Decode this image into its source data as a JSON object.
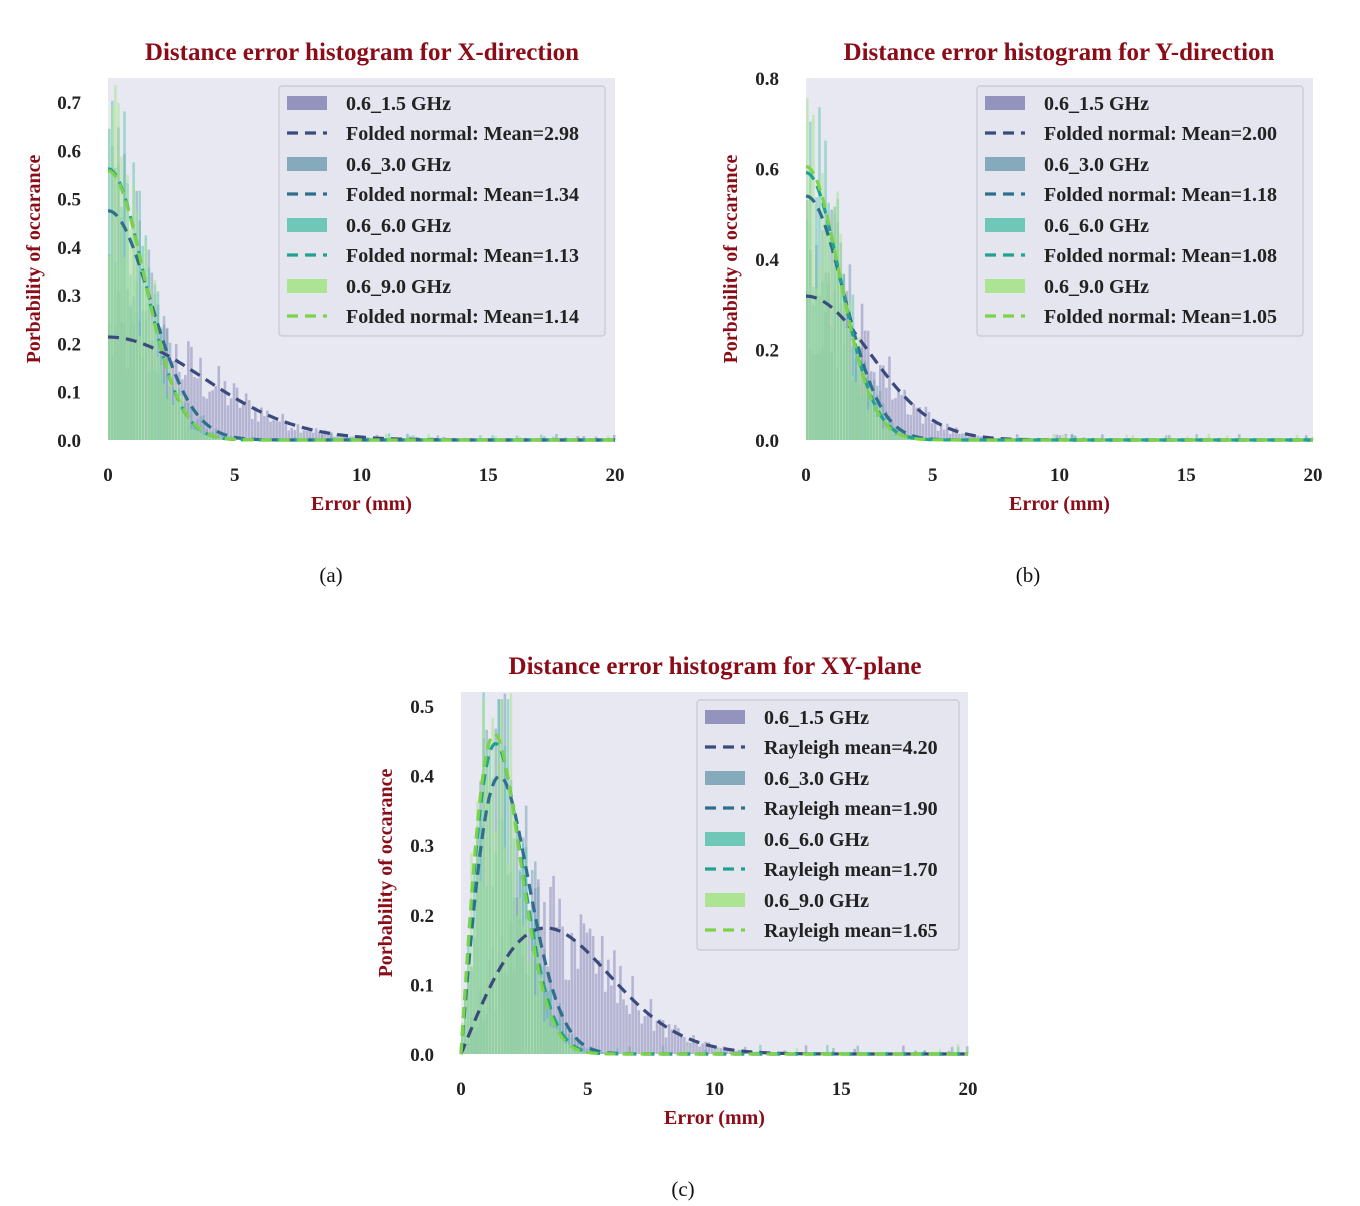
{
  "colors": {
    "plot_bg": "#e8e8f3",
    "legend_bg": "#e5e5f0",
    "legend_border": "#c8c8d4",
    "title": "#8b0c17",
    "s1": "#3b4a7c",
    "s2": "#2f6e8c",
    "s3": "#1fa38f",
    "s4": "#7dd348",
    "hist1": "#8a8ab8",
    "hist2": "#7aa3b5",
    "hist3": "#62c4b0",
    "hist4": "#a6e38a"
  },
  "chart_data": [
    {
      "id": "a",
      "type": "histogram+line",
      "title": "Distance error histogram for X-direction",
      "xlabel": "Error (mm)",
      "ylabel": "Porbability of occarance",
      "xlim": [
        0,
        20
      ],
      "ylim": [
        0,
        0.75
      ],
      "xticks": [
        "0",
        "5",
        "10",
        "15",
        "20"
      ],
      "xtick_values": [
        0,
        5,
        10,
        15,
        20
      ],
      "yticks": [
        "0.0",
        "0.1",
        "0.2",
        "0.3",
        "0.4",
        "0.5",
        "0.6",
        "0.7"
      ],
      "ytick_values": [
        0,
        0.1,
        0.2,
        0.3,
        0.4,
        0.5,
        0.6,
        0.7
      ],
      "legend_position": "top-right",
      "distribution": "foldnorm",
      "series": [
        {
          "hist_label": "0.6_1.5 GHz",
          "fit_label": "Folded normal: Mean=2.98",
          "sigma": 3.74,
          "color_key": "s1",
          "hist_key": "hist1"
        },
        {
          "hist_label": "0.6_3.0 GHz",
          "fit_label": "Folded normal: Mean=1.34",
          "sigma": 1.68,
          "color_key": "s2",
          "hist_key": "hist2"
        },
        {
          "hist_label": "0.6_6.0 GHz",
          "fit_label": "Folded normal: Mean=1.13",
          "sigma": 1.42,
          "color_key": "s3",
          "hist_key": "hist3"
        },
        {
          "hist_label": "0.6_9.0 GHz",
          "fit_label": "Folded normal: Mean=1.14",
          "sigma": 1.43,
          "color_key": "s4",
          "hist_key": "hist4"
        }
      ],
      "caption": "(a)"
    },
    {
      "id": "b",
      "type": "histogram+line",
      "title": "Distance error histogram for Y-direction",
      "xlabel": "Error (mm)",
      "ylabel": "Porbability of occarance",
      "xlim": [
        0,
        20
      ],
      "ylim": [
        0,
        0.8
      ],
      "xticks": [
        "0",
        "5",
        "10",
        "15",
        "20"
      ],
      "xtick_values": [
        0,
        5,
        10,
        15,
        20
      ],
      "yticks": [
        "0.0",
        "0.2",
        "0.4",
        "0.6",
        "0.8"
      ],
      "ytick_values": [
        0,
        0.2,
        0.4,
        0.6,
        0.8
      ],
      "legend_position": "top-right",
      "distribution": "foldnorm",
      "series": [
        {
          "hist_label": "0.6_1.5 GHz",
          "fit_label": "Folded normal: Mean=2.00",
          "sigma": 2.51,
          "color_key": "s1",
          "hist_key": "hist1"
        },
        {
          "hist_label": "0.6_3.0 GHz",
          "fit_label": "Folded normal: Mean=1.18",
          "sigma": 1.48,
          "color_key": "s2",
          "hist_key": "hist2"
        },
        {
          "hist_label": "0.6_6.0 GHz",
          "fit_label": "Folded normal: Mean=1.08",
          "sigma": 1.35,
          "color_key": "s3",
          "hist_key": "hist3"
        },
        {
          "hist_label": "0.6_9.0 GHz",
          "fit_label": "Folded normal: Mean=1.05",
          "sigma": 1.32,
          "color_key": "s4",
          "hist_key": "hist4"
        }
      ],
      "caption": "(b)"
    },
    {
      "id": "c",
      "type": "histogram+line",
      "title": "Distance error histogram for XY-plane",
      "xlabel": "Error (mm)",
      "ylabel": "Porbability of occarance",
      "xlim": [
        0,
        20
      ],
      "ylim": [
        0,
        0.52
      ],
      "xticks": [
        "0",
        "5",
        "10",
        "15",
        "20"
      ],
      "xtick_values": [
        0,
        5,
        10,
        15,
        20
      ],
      "yticks": [
        "0.0",
        "0.1",
        "0.2",
        "0.3",
        "0.4",
        "0.5"
      ],
      "ytick_values": [
        0,
        0.1,
        0.2,
        0.3,
        0.4,
        0.5
      ],
      "legend_position": "top-right",
      "distribution": "rayleigh",
      "series": [
        {
          "hist_label": "0.6_1.5 GHz",
          "fit_label": "Rayleigh mean=4.20",
          "sigma": 3.35,
          "color_key": "s1",
          "hist_key": "hist1"
        },
        {
          "hist_label": "0.6_3.0 GHz",
          "fit_label": "Rayleigh mean=1.90",
          "sigma": 1.52,
          "color_key": "s2",
          "hist_key": "hist2"
        },
        {
          "hist_label": "0.6_6.0 GHz",
          "fit_label": "Rayleigh mean=1.70",
          "sigma": 1.36,
          "color_key": "s3",
          "hist_key": "hist3"
        },
        {
          "hist_label": "0.6_9.0 GHz",
          "fit_label": "Rayleigh mean=1.65",
          "sigma": 1.32,
          "color_key": "s4",
          "hist_key": "hist4"
        }
      ],
      "caption": "(c)"
    }
  ]
}
